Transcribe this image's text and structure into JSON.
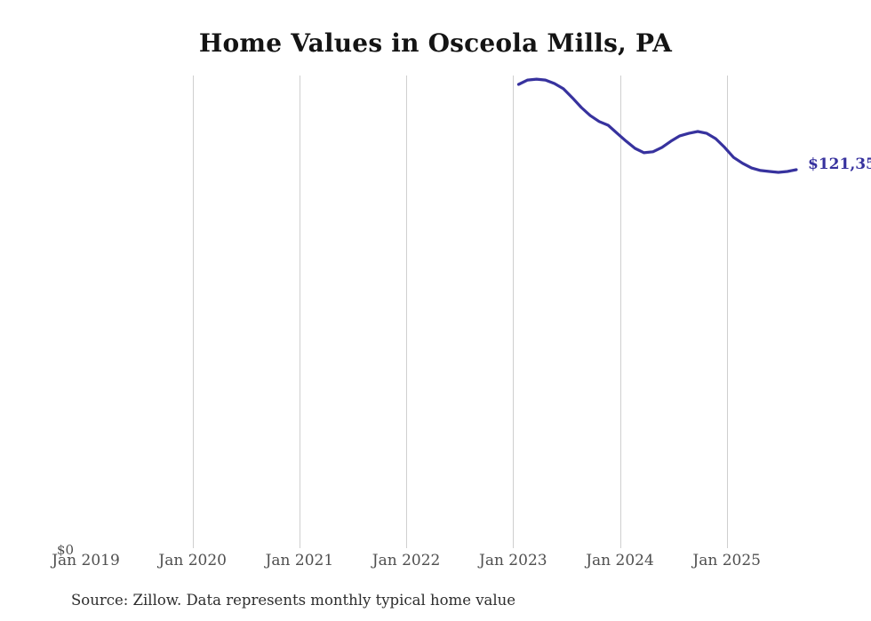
{
  "title": "Home Values in Osceola Mills, PA",
  "source_note": "Source: Zillow. Data represents monthly typical home value",
  "y_axis": {
    "zero_label": "$0"
  },
  "end_annotation": {
    "text": "$121,35"
  },
  "colors": {
    "line": "#37329e",
    "grid": "#cfcfcf",
    "axis_label": "#4f4f4f",
    "title": "#141414",
    "source": "#2e2e2e",
    "background": "#ffffff"
  },
  "chart_data": {
    "type": "line",
    "title": "Home Values in Osceola Mills, PA",
    "xlabel": "",
    "ylabel": "",
    "grid": "vertical-only",
    "legend": "none",
    "y_range_usd": [
      0,
      152000
    ],
    "y_ticks_visible": [
      "$0"
    ],
    "x_ticks": [
      {
        "label": "Jan 2019",
        "gridline": false
      },
      {
        "label": "Jan 2020",
        "gridline": true
      },
      {
        "label": "Jan 2021",
        "gridline": true
      },
      {
        "label": "Jan 2022",
        "gridline": true
      },
      {
        "label": "Jan 2023",
        "gridline": true
      },
      {
        "label": "Jan 2024",
        "gridline": true
      },
      {
        "label": "Jan 2025",
        "gridline": true
      }
    ],
    "final_value_label_visible": "$121,35",
    "final_value_estimate_usd": 121355,
    "data_start": "Jan 2023",
    "data_end": "Aug 2025",
    "series": [
      {
        "name": "Monthly typical home value (USD, estimated from plot)",
        "x": [
          "Jan 2023",
          "Feb 2023",
          "Mar 2023",
          "Apr 2023",
          "May 2023",
          "Jun 2023",
          "Jul 2023",
          "Aug 2023",
          "Sep 2023",
          "Oct 2023",
          "Nov 2023",
          "Dec 2023",
          "Jan 2024",
          "Feb 2024",
          "Mar 2024",
          "Apr 2024",
          "May 2024",
          "Jun 2024",
          "Jul 2024",
          "Aug 2024",
          "Sep 2024",
          "Oct 2024",
          "Nov 2024",
          "Dec 2024",
          "Jan 2025",
          "Feb 2025",
          "Mar 2025",
          "Apr 2025",
          "May 2025",
          "Jun 2025",
          "Jul 2025",
          "Aug 2025"
        ],
        "values": [
          148700,
          150100,
          150400,
          150100,
          149000,
          147300,
          144400,
          141300,
          138700,
          136800,
          135600,
          133000,
          130500,
          128200,
          126800,
          127100,
          128500,
          130500,
          132200,
          133000,
          133600,
          133000,
          131300,
          128500,
          125300,
          123400,
          121900,
          121100,
          120800,
          120500,
          120800,
          121355
        ]
      }
    ]
  }
}
